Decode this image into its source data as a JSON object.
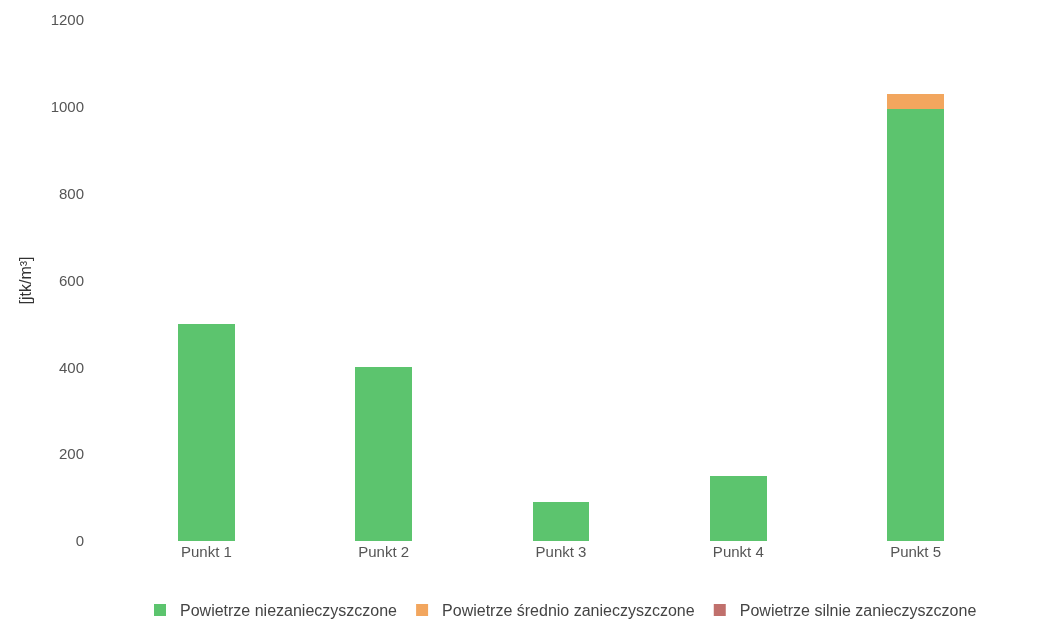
{
  "chart_data": {
    "type": "bar",
    "stacked": true,
    "ylabel": "[jtk/m³]",
    "categories": [
      "Punkt 1",
      "Punkt 2",
      "Punkt 3",
      "Punkt 4",
      "Punkt 5"
    ],
    "series": [
      {
        "name": "Powietrze niezanieczyszczone",
        "color": "#5cc46e",
        "values": [
          500,
          400,
          90,
          150,
          995
        ]
      },
      {
        "name": "Powietrze średnio zanieczyszczone",
        "color": "#f2a65e",
        "values": [
          0,
          0,
          0,
          0,
          35
        ]
      },
      {
        "name": "Powietrze silnie zanieczyszczone",
        "color": "#c0706c",
        "values": [
          0,
          0,
          0,
          0,
          0
        ]
      }
    ],
    "ylim": [
      0,
      1200
    ],
    "yticks": [
      0,
      200,
      400,
      600,
      800,
      1000,
      1200
    ],
    "grid": false,
    "legend": "bottom"
  }
}
